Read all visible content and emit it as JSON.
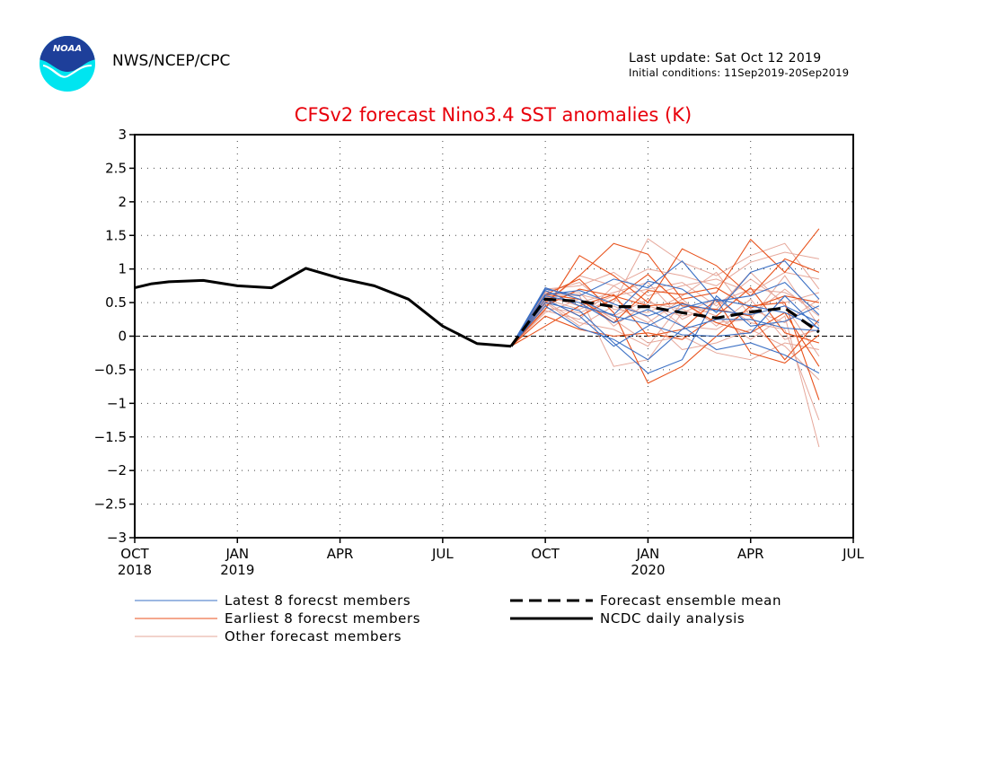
{
  "header": {
    "logo_text": "NOAA",
    "agency": "NWS/NCEP/CPC",
    "last_update": "Last update: Sat Oct 12 2019",
    "initial_conditions": "Initial conditions: 11Sep2019-20Sep2019"
  },
  "colors": {
    "title": "#e8000b",
    "latest": "#3a6fc4",
    "earliest": "#e8521c",
    "other": "#e6a79a",
    "analysis": "#000000",
    "mean": "#000000",
    "logo_top": "#1e3f9a",
    "logo_bottom": "#00e5f0"
  },
  "chart_data": {
    "type": "line",
    "title": "CFSv2 forecast Nino3.4 SST anomalies (K)",
    "ylim": [
      -3,
      3
    ],
    "xlim": [
      0,
      21
    ],
    "grid": true,
    "y_ticks": [
      {
        "value": 3,
        "label": "3"
      },
      {
        "value": 2.5,
        "label": "2.5"
      },
      {
        "value": 2,
        "label": "2"
      },
      {
        "value": 1.5,
        "label": "1.5"
      },
      {
        "value": 1,
        "label": "1"
      },
      {
        "value": 0.5,
        "label": "0.5"
      },
      {
        "value": 0,
        "label": "0"
      },
      {
        "value": -0.5,
        "label": "−0.5"
      },
      {
        "value": -1,
        "label": "−1"
      },
      {
        "value": -1.5,
        "label": "−1.5"
      },
      {
        "value": -2,
        "label": "−2"
      },
      {
        "value": -2.5,
        "label": "−2.5"
      },
      {
        "value": -3,
        "label": "−3"
      }
    ],
    "x_ticks": [
      {
        "value": 0,
        "label": "OCT",
        "sublabel": "2018"
      },
      {
        "value": 3,
        "label": "JAN",
        "sublabel": "2019"
      },
      {
        "value": 6,
        "label": "APR",
        "sublabel": ""
      },
      {
        "value": 9,
        "label": "JUL",
        "sublabel": ""
      },
      {
        "value": 12,
        "label": "OCT",
        "sublabel": ""
      },
      {
        "value": 15,
        "label": "JAN",
        "sublabel": "2020"
      },
      {
        "value": 18,
        "label": "APR",
        "sublabel": ""
      },
      {
        "value": 21,
        "label": "JUL",
        "sublabel": ""
      }
    ],
    "analysis": {
      "x": [
        0,
        0.5,
        1,
        2,
        3,
        4,
        5,
        6,
        7,
        8,
        9,
        10,
        11
      ],
      "y": [
        0.72,
        0.78,
        0.81,
        0.83,
        0.75,
        0.72,
        1.01,
        0.86,
        0.75,
        0.55,
        0.15,
        -0.11,
        -0.15
      ]
    },
    "mean": {
      "x": [
        11,
        12,
        13,
        14,
        15,
        16,
        17,
        18,
        19,
        20
      ],
      "y": [
        -0.15,
        0.55,
        0.52,
        0.44,
        0.44,
        0.35,
        0.27,
        0.36,
        0.42,
        0.06
      ]
    },
    "members_x": [
      11,
      12,
      13,
      14,
      15,
      16,
      17,
      18,
      19,
      20
    ],
    "members_latest": [
      [
        -0.15,
        0.68,
        0.45,
        0.32,
        0.82,
        0.7,
        0.35,
        0.95,
        1.12,
        0.55
      ],
      [
        -0.15,
        0.55,
        0.3,
        -0.15,
        0.15,
        0.42,
        0.55,
        0.45,
        0.35,
        0.12
      ],
      [
        -0.15,
        0.7,
        0.6,
        0.85,
        0.72,
        1.12,
        0.52,
        0.6,
        0.8,
        0.32
      ],
      [
        -0.15,
        0.45,
        0.12,
        -0.05,
        -0.35,
        0.1,
        0.25,
        0.25,
        0.12,
        0.08
      ],
      [
        -0.15,
        0.6,
        0.5,
        0.2,
        0.4,
        0.15,
        -0.2,
        -0.1,
        -0.28,
        -0.55
      ],
      [
        -0.15,
        0.72,
        0.55,
        0.3,
        0.18,
        0.02,
        0.0,
        0.05,
        0.6,
        0.1
      ],
      [
        -0.15,
        0.5,
        0.38,
        -0.1,
        -0.55,
        -0.35,
        0.6,
        0.15,
        0.22,
        0.45
      ],
      [
        -0.15,
        0.62,
        0.68,
        0.48,
        0.3,
        0.48,
        0.38,
        0.32,
        0.45,
        0.2
      ]
    ],
    "members_earliest": [
      [
        -0.15,
        0.5,
        0.9,
        1.38,
        1.22,
        0.55,
        0.65,
        1.44,
        0.95,
        1.6
      ],
      [
        -0.15,
        0.62,
        0.85,
        0.35,
        -0.7,
        -0.45,
        0.0,
        0.45,
        0.5,
        -0.95
      ],
      [
        -0.15,
        0.4,
        1.2,
        0.9,
        0.5,
        1.3,
        1.05,
        0.6,
        1.15,
        0.95
      ],
      [
        -0.15,
        0.55,
        0.3,
        0.55,
        0.92,
        0.45,
        0.4,
        0.3,
        -0.35,
        0.25
      ],
      [
        -0.15,
        0.3,
        0.1,
        0.0,
        0.05,
        -0.05,
        0.3,
        0.72,
        0.05,
        -0.1
      ],
      [
        -0.15,
        0.62,
        0.55,
        0.2,
        0.68,
        0.62,
        0.72,
        0.42,
        0.6,
        0.5
      ],
      [
        -0.15,
        0.15,
        0.45,
        0.62,
        0.0,
        0.1,
        0.55,
        -0.25,
        -0.4,
        0.02
      ],
      [
        -0.15,
        0.45,
        0.7,
        0.6,
        0.45,
        0.5,
        0.2,
        0.05,
        0.35,
        -0.45
      ]
    ],
    "members_other": [
      [
        -0.15,
        0.58,
        0.62,
        0.5,
        1.45,
        1.1,
        0.9,
        1.2,
        1.38,
        0.7
      ],
      [
        -0.15,
        0.65,
        0.6,
        -0.45,
        -0.35,
        0.35,
        0.55,
        0.2,
        0.1,
        -1.25
      ],
      [
        -0.15,
        0.38,
        0.25,
        0.75,
        0.45,
        0.3,
        0.4,
        0.95,
        0.45,
        -0.3
      ],
      [
        -0.15,
        0.48,
        0.9,
        0.75,
        1.0,
        0.9,
        0.75,
        1.1,
        1.25,
        1.15
      ],
      [
        -0.15,
        0.52,
        0.2,
        0.1,
        -0.15,
        0.5,
        0.3,
        -0.05,
        0.3,
        -1.65
      ],
      [
        -0.15,
        0.6,
        0.45,
        0.3,
        0.55,
        0.15,
        0.1,
        0.4,
        0.2,
        0.55
      ],
      [
        -0.15,
        0.7,
        0.75,
        0.95,
        0.6,
        0.75,
        0.85,
        0.65,
        0.95,
        0.85
      ],
      [
        -0.15,
        0.42,
        0.35,
        0.55,
        0.28,
        -0.2,
        -0.1,
        0.1,
        -0.15,
        -0.65
      ],
      [
        -0.15,
        0.58,
        0.5,
        0.65,
        0.8,
        0.25,
        0.5,
        0.7,
        0.65,
        0.4
      ],
      [
        -0.15,
        0.5,
        0.15,
        0.45,
        0.2,
        0.55,
        0.15,
        0.55,
        -0.05,
        0.1
      ],
      [
        -0.15,
        0.66,
        0.8,
        0.4,
        0.35,
        0.6,
        0.95,
        0.3,
        0.7,
        0.3
      ],
      [
        -0.15,
        0.35,
        0.55,
        0.25,
        -0.1,
        0.0,
        -0.25,
        -0.35,
        -0.1,
        -0.2
      ],
      [
        -0.15,
        0.55,
        0.4,
        0.6,
        0.7,
        0.8,
        0.45,
        0.85,
        0.5,
        0.65
      ],
      [
        -0.15,
        0.6,
        0.65,
        0.15,
        0.5,
        0.4,
        0.2,
        0.25,
        0.9,
        0.15
      ]
    ],
    "legend": {
      "latest": "Latest 8 forecst members",
      "earliest": "Earliest 8 forecst members",
      "other": "Other forecast members",
      "mean": "Forecast ensemble mean",
      "analysis": "NCDC daily analysis"
    }
  }
}
